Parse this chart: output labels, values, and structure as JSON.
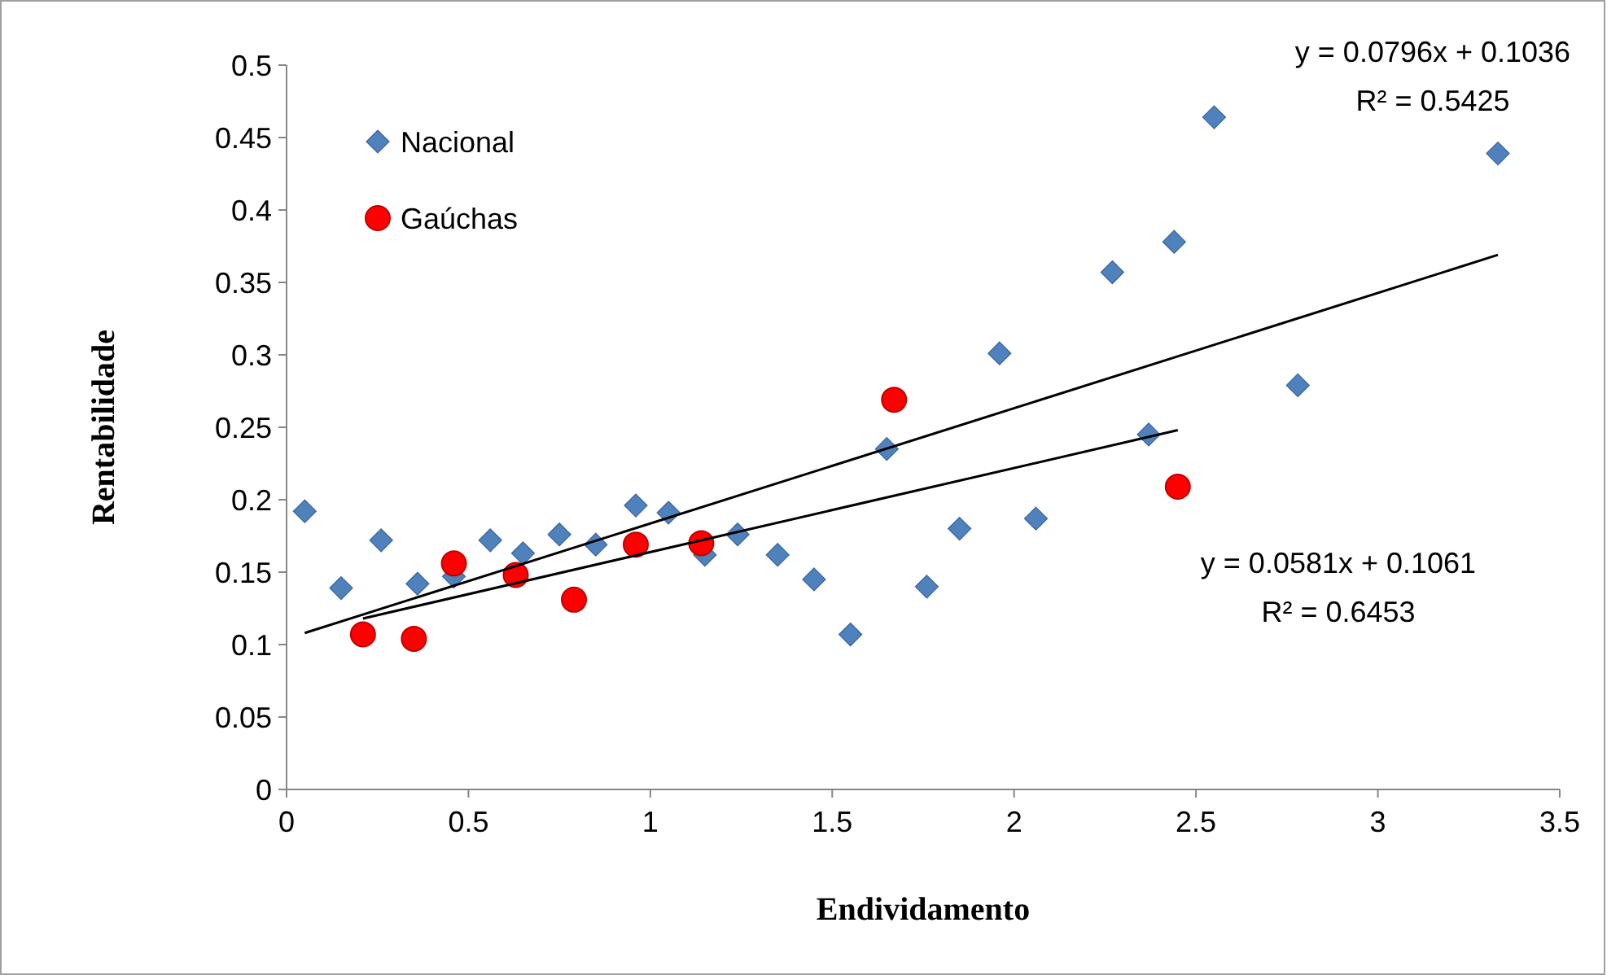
{
  "chart_data": {
    "type": "scatter",
    "xlabel": "Endividamento",
    "ylabel": "Rentabilidade",
    "xlim": [
      0,
      3.5
    ],
    "ylim": [
      0,
      0.5
    ],
    "xticks": [
      0,
      0.5,
      1,
      1.5,
      2,
      2.5,
      3,
      3.5
    ],
    "yticks": [
      0,
      0.05,
      0.1,
      0.15,
      0.2,
      0.25,
      0.3,
      0.35,
      0.4,
      0.45,
      0.5
    ],
    "grid": false,
    "legend": "top left",
    "series": [
      {
        "name": "Nacional",
        "color": "#4f81bd",
        "marker": "diamond",
        "x": [
          0.05,
          0.15,
          0.26,
          0.36,
          0.46,
          0.56,
          0.65,
          0.75,
          0.85,
          0.96,
          1.05,
          1.15,
          1.24,
          1.35,
          1.45,
          1.55,
          1.65,
          1.76,
          1.85,
          1.96,
          2.06,
          2.27,
          2.37,
          2.44,
          2.55,
          2.78,
          3.33
        ],
        "values": [
          0.192,
          0.139,
          0.172,
          0.142,
          0.147,
          0.172,
          0.163,
          0.176,
          0.169,
          0.196,
          0.191,
          0.162,
          0.176,
          0.162,
          0.145,
          0.107,
          0.235,
          0.14,
          0.18,
          0.301,
          0.187,
          0.357,
          0.245,
          0.378,
          0.464,
          0.279,
          0.439
        ]
      },
      {
        "name": "Gaúchas",
        "color": "#ff0000",
        "marker": "circle",
        "x": [
          0.21,
          0.35,
          0.46,
          0.63,
          0.79,
          0.96,
          1.14,
          1.67,
          2.45
        ],
        "values": [
          0.107,
          0.104,
          0.156,
          0.148,
          0.131,
          0.169,
          0.17,
          0.269,
          0.209
        ]
      },
      {
        "type": "line",
        "color": "#000000",
        "x": [
          0.05,
          3.33
        ],
        "values": [
          0.108,
          0.369
        ]
      },
      {
        "type": "line",
        "color": "#000000",
        "x": [
          0.21,
          2.45
        ],
        "values": [
          0.118,
          0.248
        ]
      }
    ],
    "annotations": [
      "y = 0.0796x + 0.1036",
      "R² = 0.5425",
      "y = 0.0581x + 0.1061",
      "R² = 0.6453"
    ]
  }
}
